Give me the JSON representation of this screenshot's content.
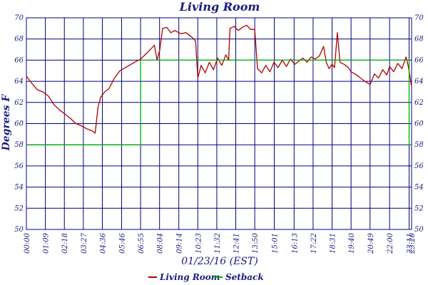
{
  "chart_data": {
    "type": "line",
    "title": "Living Room",
    "xlabel": "01/23/16 (EST)",
    "ylabel": "Degrees F",
    "ylim": [
      50,
      70
    ],
    "yticks": [
      50,
      52,
      54,
      56,
      58,
      60,
      62,
      64,
      66,
      68,
      70
    ],
    "xlim": [
      "00:00",
      "23:20"
    ],
    "xticks": [
      "00:00",
      "01:09",
      "02:18",
      "03:27",
      "04:36",
      "05:46",
      "06:55",
      "08:04",
      "09:14",
      "10:23",
      "11:32",
      "12:41",
      "13:50",
      "15:01",
      "16:13",
      "17:22",
      "18:31",
      "19:40",
      "20:49",
      "22:00",
      "23:11",
      "23:20"
    ],
    "grid": true,
    "legend_position": "bottom",
    "series": [
      {
        "name": "Living Room",
        "color": "#b00000",
        "points": [
          [
            "00:00",
            64.5
          ],
          [
            "00:20",
            63.8
          ],
          [
            "00:40",
            63.2
          ],
          [
            "01:00",
            63.0
          ],
          [
            "01:20",
            62.6
          ],
          [
            "01:40",
            61.8
          ],
          [
            "02:00",
            61.3
          ],
          [
            "02:20",
            60.9
          ],
          [
            "02:40",
            60.5
          ],
          [
            "03:00",
            60.0
          ],
          [
            "03:20",
            59.8
          ],
          [
            "03:40",
            59.5
          ],
          [
            "04:00",
            59.3
          ],
          [
            "04:10",
            59.1
          ],
          [
            "04:20",
            61.5
          ],
          [
            "04:30",
            62.5
          ],
          [
            "04:45",
            63.0
          ],
          [
            "05:00",
            63.3
          ],
          [
            "05:20",
            64.3
          ],
          [
            "05:40",
            65.0
          ],
          [
            "06:00",
            65.3
          ],
          [
            "06:20",
            65.6
          ],
          [
            "06:40",
            65.9
          ],
          [
            "06:55",
            66.1
          ],
          [
            "07:15",
            66.6
          ],
          [
            "07:30",
            67.0
          ],
          [
            "07:45",
            67.4
          ],
          [
            "07:55",
            66.0
          ],
          [
            "08:05",
            67.0
          ],
          [
            "08:15",
            69.0
          ],
          [
            "08:30",
            69.1
          ],
          [
            "08:45",
            68.6
          ],
          [
            "09:00",
            68.8
          ],
          [
            "09:20",
            68.5
          ],
          [
            "09:40",
            68.6
          ],
          [
            "10:00",
            68.2
          ],
          [
            "10:15",
            67.8
          ],
          [
            "10:23",
            64.3
          ],
          [
            "10:35",
            65.5
          ],
          [
            "10:50",
            64.8
          ],
          [
            "11:05",
            65.8
          ],
          [
            "11:20",
            65.1
          ],
          [
            "11:35",
            66.2
          ],
          [
            "11:50",
            65.5
          ],
          [
            "12:05",
            66.5
          ],
          [
            "12:15",
            66.0
          ],
          [
            "12:20",
            69.0
          ],
          [
            "12:35",
            69.2
          ],
          [
            "12:50",
            68.8
          ],
          [
            "13:05",
            69.1
          ],
          [
            "13:20",
            69.3
          ],
          [
            "13:35",
            68.9
          ],
          [
            "13:50",
            68.9
          ],
          [
            "14:00",
            65.2
          ],
          [
            "14:15",
            64.8
          ],
          [
            "14:30",
            65.5
          ],
          [
            "14:45",
            64.9
          ],
          [
            "15:00",
            65.8
          ],
          [
            "15:15",
            65.3
          ],
          [
            "15:30",
            66.0
          ],
          [
            "15:45",
            65.4
          ],
          [
            "16:00",
            66.1
          ],
          [
            "16:15",
            65.6
          ],
          [
            "16:30",
            65.9
          ],
          [
            "16:45",
            66.2
          ],
          [
            "17:00",
            65.8
          ],
          [
            "17:15",
            66.3
          ],
          [
            "17:30",
            66.1
          ],
          [
            "17:45",
            66.4
          ],
          [
            "18:00",
            67.3
          ],
          [
            "18:10",
            65.8
          ],
          [
            "18:20",
            65.2
          ],
          [
            "18:31",
            65.6
          ],
          [
            "18:40",
            65.3
          ],
          [
            "18:50",
            68.6
          ],
          [
            "19:00",
            65.8
          ],
          [
            "19:15",
            65.6
          ],
          [
            "19:30",
            65.3
          ],
          [
            "19:40",
            64.9
          ],
          [
            "20:00",
            64.6
          ],
          [
            "20:15",
            64.3
          ],
          [
            "20:30",
            64.0
          ],
          [
            "20:49",
            63.7
          ],
          [
            "21:05",
            64.7
          ],
          [
            "21:20",
            64.3
          ],
          [
            "21:35",
            65.1
          ],
          [
            "21:50",
            64.6
          ],
          [
            "22:00",
            65.4
          ],
          [
            "22:15",
            64.9
          ],
          [
            "22:30",
            65.7
          ],
          [
            "22:45",
            65.2
          ],
          [
            "23:00",
            66.3
          ],
          [
            "23:08",
            65.4
          ],
          [
            "23:13",
            64.6
          ],
          [
            "23:20",
            63.5
          ]
        ]
      },
      {
        "name": "Setback",
        "color": "#00b000",
        "points": [
          [
            "00:00",
            58
          ],
          [
            "06:55",
            58
          ],
          [
            "06:55",
            66
          ],
          [
            "23:11",
            66
          ],
          [
            "23:11",
            58
          ],
          [
            "23:20",
            58
          ]
        ]
      }
    ]
  }
}
